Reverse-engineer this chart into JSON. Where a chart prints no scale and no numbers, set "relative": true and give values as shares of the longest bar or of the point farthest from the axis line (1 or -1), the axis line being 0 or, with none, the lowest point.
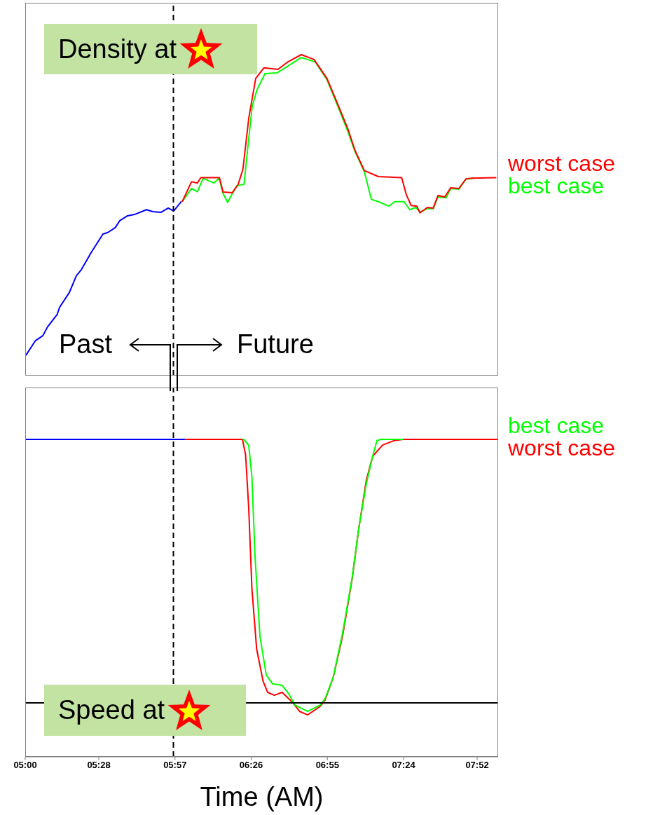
{
  "chart_data": [
    {
      "type": "line",
      "relative": true,
      "xlim": [
        5,
        8
      ],
      "xticks": [
        {
          "value": 5,
          "label": null
        },
        {
          "value": 5.4667,
          "label": null
        },
        {
          "value": 5.95,
          "label": null
        },
        {
          "value": 6.4333,
          "label": null
        },
        {
          "value": 6.9167,
          "label": null
        },
        {
          "value": 7.4,
          "label": null
        },
        {
          "value": 7.8667,
          "label": null
        }
      ],
      "tick_labels": false,
      "legend": "right",
      "annotations": [
        "Density at",
        "Past",
        "Future"
      ],
      "ref_lines": [
        {
          "axis": "x",
          "value": 5.94,
          "color": "#000000",
          "line_style": "dashed"
        }
      ],
      "series": [
        {
          "name": "worst case",
          "color": "#ff0000",
          "x": [
            5.996,
            6.055,
            6.092,
            6.114,
            6.232,
            6.255,
            6.314,
            6.351,
            6.381,
            6.418,
            6.462,
            6.514,
            6.603,
            6.662,
            6.751,
            6.832,
            6.914,
            6.988,
            7.048,
            7.092,
            7.151,
            7.24,
            7.388,
            7.418,
            7.448,
            7.484,
            7.504,
            7.551,
            7.588,
            7.618,
            7.662,
            7.699,
            7.751,
            7.796,
            7.832,
            7.988
          ],
          "values": [
            0.542,
            0.604,
            0.6,
            0.617,
            0.617,
            0.572,
            0.57,
            0.596,
            0.643,
            0.802,
            0.926,
            0.959,
            0.954,
            0.976,
            1,
            0.985,
            0.926,
            0.839,
            0.767,
            0.702,
            0.639,
            0.62,
            0.617,
            0.563,
            0.53,
            0.528,
            0.507,
            0.524,
            0.522,
            0.561,
            0.557,
            0.585,
            0.583,
            0.613,
            0.615,
            0.617
          ]
        },
        {
          "name": "best case",
          "color": "#00ff00",
          "x": [
            5.996,
            6.055,
            6.092,
            6.129,
            6.196,
            6.23,
            6.255,
            6.284,
            6.314,
            6.344,
            6.388,
            6.41,
            6.44,
            6.47,
            6.521,
            6.596,
            6.648,
            6.751,
            6.84,
            6.914,
            6.988,
            7.048,
            7.092,
            7.151,
            7.196,
            7.24,
            7.307,
            7.344,
            7.403,
            7.44,
            7.477,
            7.504,
            7.551,
            7.588,
            7.618,
            7.67,
            7.699,
            7.751,
            7.796,
            7.848
          ],
          "values": [
            0.542,
            0.583,
            0.573,
            0.615,
            0.6,
            0.615,
            0.567,
            0.54,
            0.567,
            0.592,
            0.596,
            0.702,
            0.839,
            0.89,
            0.941,
            0.943,
            0.959,
            0.991,
            0.977,
            0.922,
            0.833,
            0.759,
            0.698,
            0.636,
            0.549,
            0.542,
            0.528,
            0.542,
            0.542,
            0.517,
            0.524,
            0.51,
            0.52,
            0.52,
            0.557,
            0.554,
            0.583,
            0.581,
            0.612,
            0.615
          ]
        },
        {
          "color": "#0000ff",
          "x": [
            5.004,
            5.065,
            5.111,
            5.142,
            5.203,
            5.218,
            5.28,
            5.324,
            5.356,
            5.418,
            5.493,
            5.524,
            5.571,
            5.6,
            5.649,
            5.693,
            5.769,
            5.809,
            5.862,
            5.907,
            5.942,
            5.991
          ],
          "values": [
            0.063,
            0.109,
            0.124,
            0.152,
            0.191,
            0.213,
            0.259,
            0.311,
            0.33,
            0.383,
            0.441,
            0.446,
            0.461,
            0.483,
            0.498,
            0.502,
            0.517,
            0.511,
            0.509,
            0.522,
            0.513,
            0.543
          ]
        }
      ]
    },
    {
      "type": "line",
      "relative": true,
      "xlabel": "Time (AM)",
      "xlim": [
        5,
        8
      ],
      "xticks": [
        {
          "value": 5,
          "label": "05:00"
        },
        {
          "value": 5.4667,
          "label": "05:28"
        },
        {
          "value": 5.95,
          "label": "05:57"
        },
        {
          "value": 6.4333,
          "label": "06:26"
        },
        {
          "value": 6.9167,
          "label": "06:55"
        },
        {
          "value": 7.4,
          "label": "07:24"
        },
        {
          "value": 7.8667,
          "label": "07:52"
        }
      ],
      "tick_labels": "x",
      "legend": "right",
      "annotations": [
        "Speed at"
      ],
      "ref_lines": [
        {
          "axis": "x",
          "value": 5.94,
          "color": "#000000",
          "line_style": "dashed"
        },
        {
          "axis": "y",
          "value": 0.17,
          "color": "#000000"
        }
      ],
      "series": [
        {
          "name": "best case",
          "color": "#00ff00",
          "x": [
            6.378,
            6.387,
            6.418,
            6.438,
            6.458,
            6.489,
            6.529,
            6.569,
            6.63,
            6.671,
            6.711,
            6.791,
            6.871,
            6.902,
            6.953,
            7.013,
            7.074,
            7.116,
            7.164,
            7.204,
            7.231,
            7.256,
            7.398
          ],
          "values": [
            1,
            1,
            0.981,
            0.881,
            0.63,
            0.38,
            0.258,
            0.23,
            0.225,
            0.199,
            0.163,
            0.143,
            0.163,
            0.183,
            0.249,
            0.389,
            0.565,
            0.72,
            0.861,
            0.947,
            0.996,
            1,
            1
          ]
        },
        {
          "name": "worst case",
          "color": "#ff0000",
          "x": [
            6.013,
            6.378,
            6.398,
            6.418,
            6.438,
            6.468,
            6.509,
            6.538,
            6.58,
            6.63,
            6.691,
            6.741,
            6.791,
            6.871,
            6.902,
            6.953,
            7.013,
            7.074,
            7.116,
            7.164,
            7.204,
            7.267,
            7.338,
            7.398,
            8
          ],
          "values": [
            1,
            1,
            0.951,
            0.781,
            0.53,
            0.34,
            0.238,
            0.203,
            0.194,
            0.203,
            0.174,
            0.143,
            0.132,
            0.159,
            0.179,
            0.249,
            0.38,
            0.561,
            0.72,
            0.872,
            0.947,
            0.982,
            0.996,
            1,
            1
          ]
        },
        {
          "color": "#0000ff",
          "x": [
            5,
            6.013
          ],
          "values": [
            1,
            1
          ]
        }
      ]
    }
  ]
}
